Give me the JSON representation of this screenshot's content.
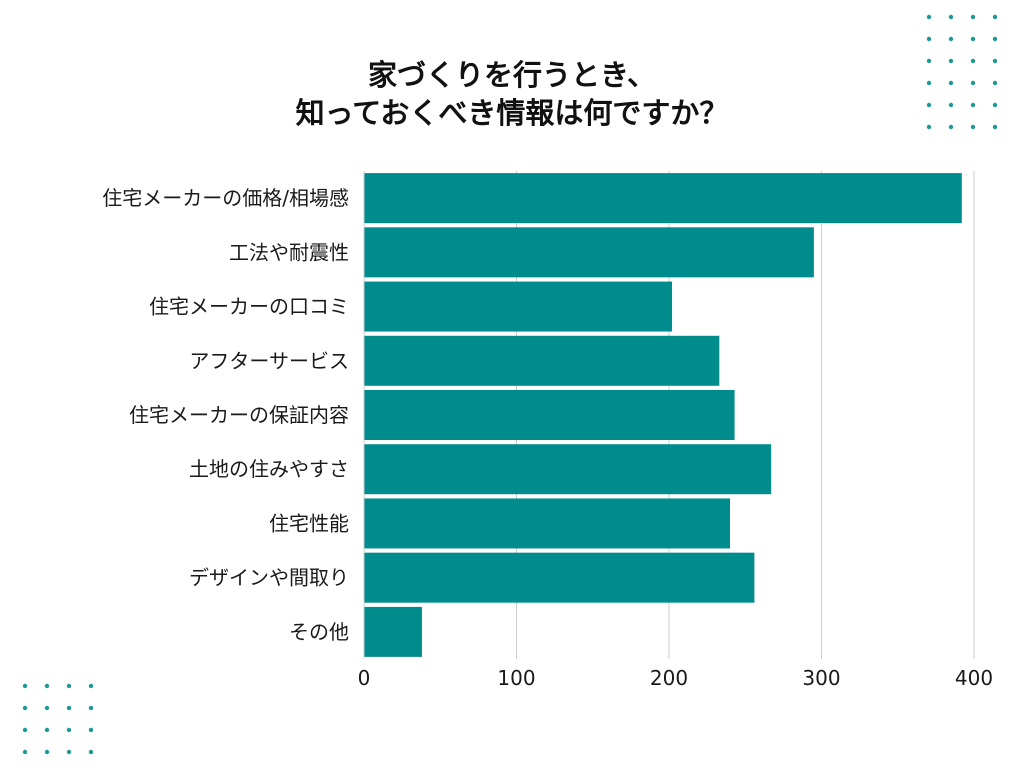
{
  "colors": {
    "bar": "#008c8c",
    "dots": "#1a9a96",
    "grid": "#c9cdd2",
    "text": "#1a1a1a"
  },
  "chart_data": {
    "type": "bar",
    "orientation": "horizontal",
    "title_lines": [
      "家づくりを行うとき、",
      "知っておくべき情報は何ですか？"
    ],
    "xlabel": "",
    "ylabel": "",
    "categories": [
      "住宅メーカーの価格/相場感",
      "工法や耐震性",
      "住宅メーカーの口コミ",
      "アフターサービス",
      "住宅メーカーの保証内容",
      "土地の住みやすさ",
      "住宅性能",
      "デザインや間取り",
      "その他"
    ],
    "values": [
      392,
      295,
      202,
      233,
      243,
      267,
      240,
      256,
      38
    ],
    "xlim": [
      0,
      400
    ],
    "xticks": [
      0,
      100,
      200,
      300,
      400
    ],
    "grid": true,
    "legend": "none"
  }
}
